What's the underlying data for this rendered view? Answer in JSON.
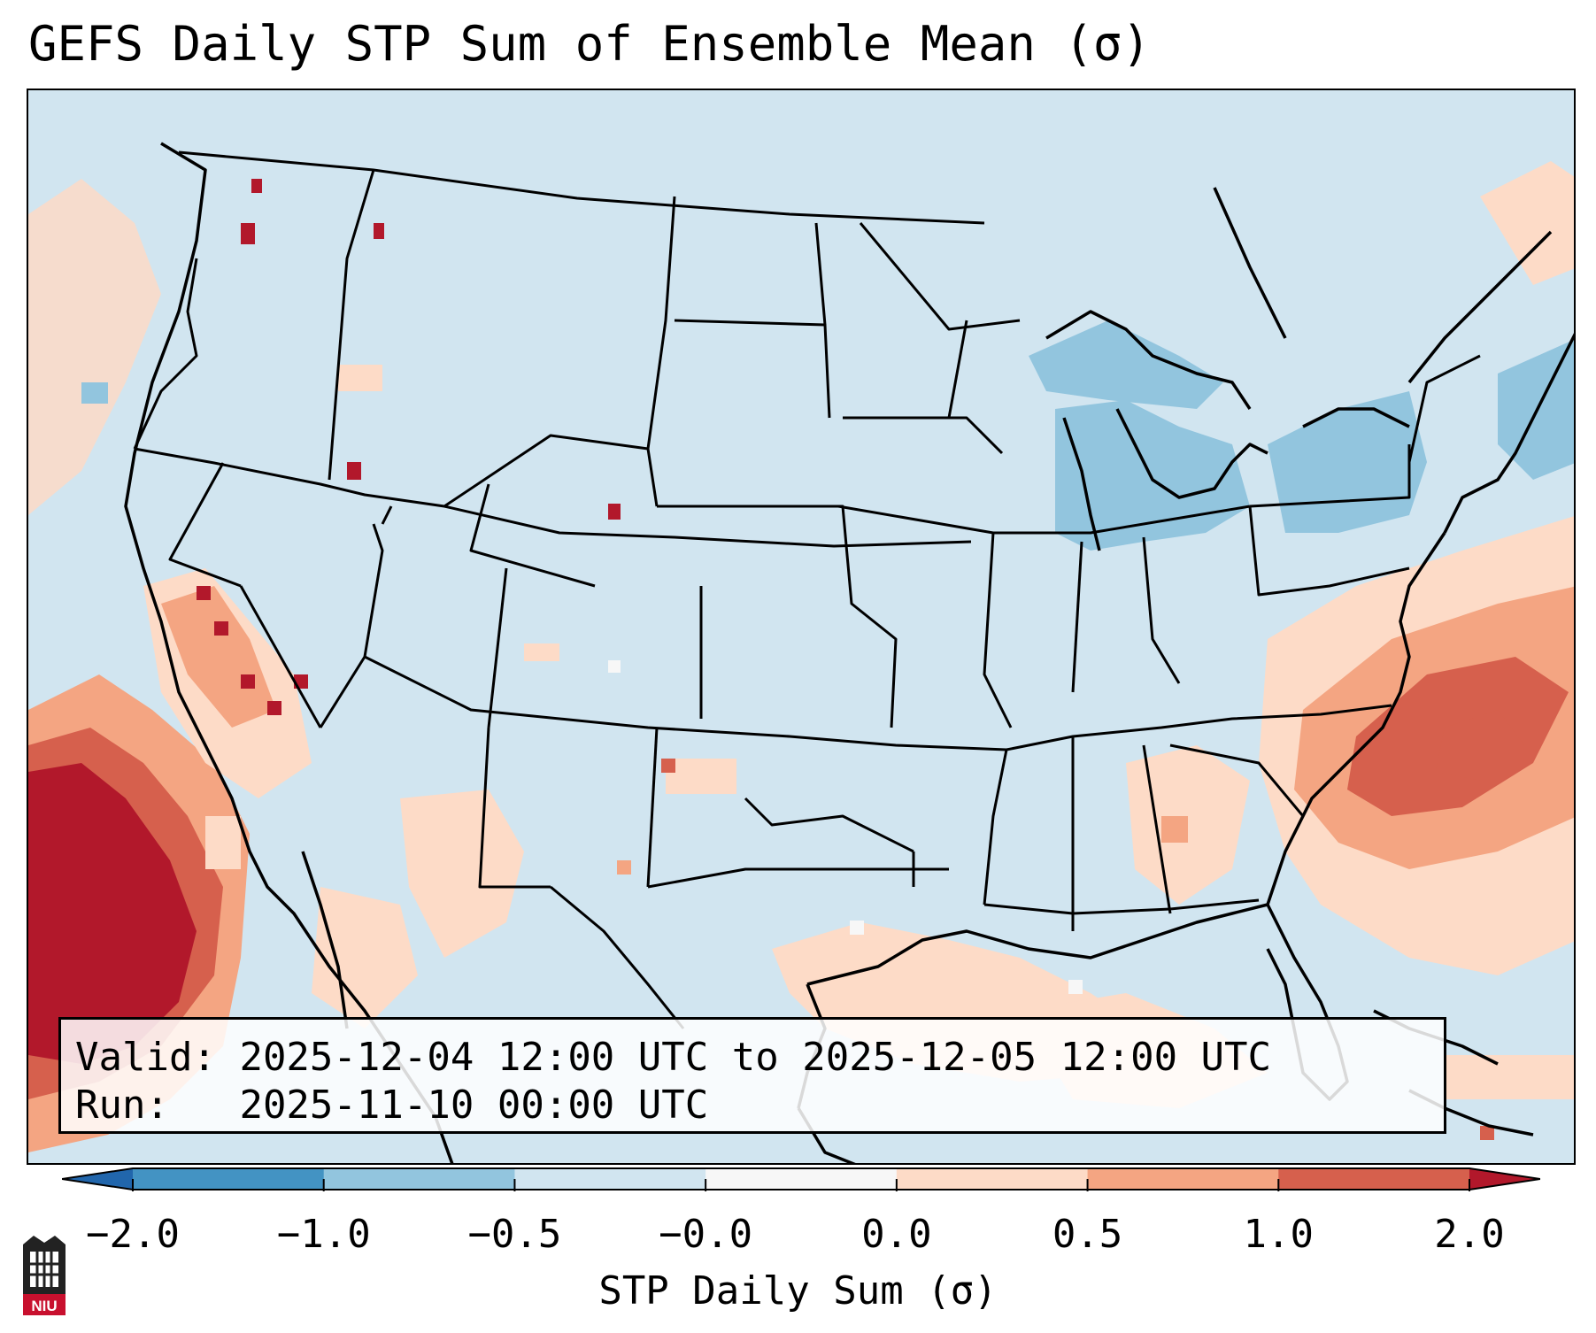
{
  "title": "GEFS Daily STP Sum of Ensemble Mean (σ)",
  "info": {
    "valid_label": "Valid:",
    "valid_value": "2025-12-04 12:00 UTC to 2025-12-05 12:00 UTC",
    "run_label": "Run:",
    "run_value": "2025-11-10 00:00 UTC"
  },
  "colorbar": {
    "label": "STP Daily Sum (σ)",
    "ticks": [
      "−2.0",
      "−1.0",
      "−0.5",
      "−0.0",
      "0.0",
      "0.5",
      "1.0",
      "2.0"
    ],
    "colors": [
      "#2166ac",
      "#4393c3",
      "#92c5de",
      "#d1e5f0",
      "#f7f7f7",
      "#fddbc7",
      "#f4a582",
      "#d6604d",
      "#b2182b"
    ],
    "extend": "both"
  },
  "logo": {
    "text": "NIU"
  },
  "icons": {
    "logo": "niu-shield-icon"
  }
}
